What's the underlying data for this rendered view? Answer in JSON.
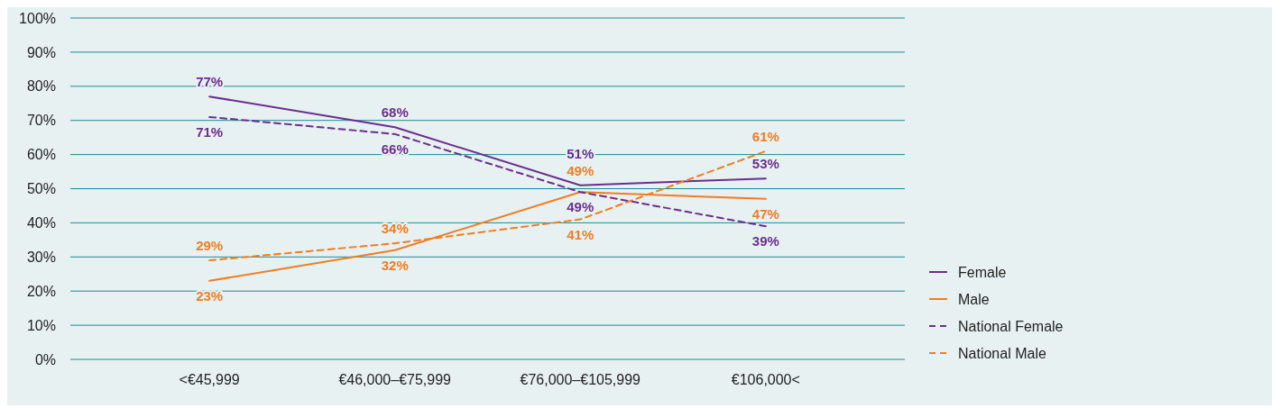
{
  "chart_data": {
    "type": "line",
    "categories": [
      "<€45,999",
      "€46,000–€75,999",
      "€76,000–€105,999",
      "€106,000<"
    ],
    "series": [
      {
        "name": "Female",
        "color": "#6b2d8f",
        "values": [
          77,
          68,
          51,
          53
        ],
        "value_labels": [
          "77%",
          "68%",
          "51%",
          "53%"
        ]
      },
      {
        "name": "Male",
        "color": "#f07d22",
        "values": [
          23,
          32,
          49,
          47
        ],
        "value_labels": [
          "23%",
          "32%",
          "49%",
          "47%"
        ]
      },
      {
        "name": "National Female",
        "color": "#6b2d8f",
        "values": [
          71,
          66,
          49,
          39
        ],
        "line_style": "dashed",
        "value_labels": [
          "71%",
          "66%",
          "49%",
          "39%"
        ]
      },
      {
        "name": "National Male",
        "color": "#f07d22",
        "values": [
          29,
          34,
          41,
          61
        ],
        "line_style": "dashed",
        "value_labels": [
          "29%",
          "34%",
          "41%",
          "61%"
        ]
      }
    ],
    "ylim": [
      0,
      100
    ],
    "yticks": [
      {
        "value": 0,
        "label": "0%"
      },
      {
        "value": 10,
        "label": "10%"
      },
      {
        "value": 20,
        "label": "20%"
      },
      {
        "value": 30,
        "label": "30%"
      },
      {
        "value": 40,
        "label": "40%"
      },
      {
        "value": 50,
        "label": "50%"
      },
      {
        "value": 60,
        "label": "60%"
      },
      {
        "value": 70,
        "label": "70%"
      },
      {
        "value": 80,
        "label": "80%"
      },
      {
        "value": 90,
        "label": "90%"
      },
      {
        "value": 100,
        "label": "100%"
      }
    ],
    "grid": "y",
    "legend": "right",
    "line_style": "solid"
  }
}
